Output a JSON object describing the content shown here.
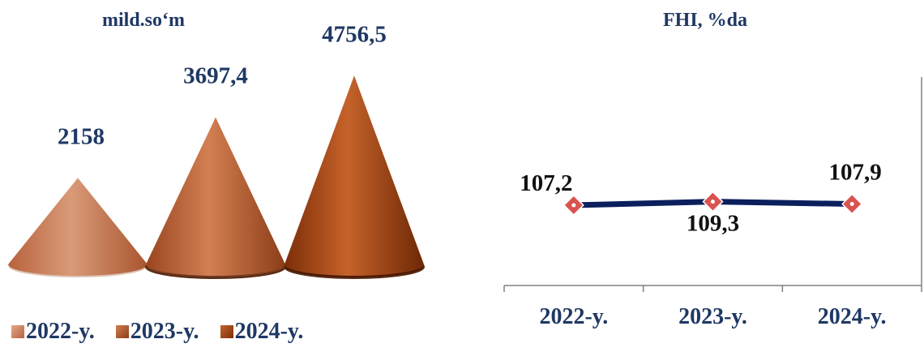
{
  "chart_data": [
    {
      "type": "bar",
      "shape": "cone",
      "title": "mild.so‘m",
      "categories": [
        "2022-y.",
        "2023-y.",
        "2024-y."
      ],
      "values": [
        2158,
        3697.4,
        4756.5
      ],
      "value_labels": [
        "2158",
        "3697,4",
        "4756,5"
      ],
      "colors": [
        "#c7754e",
        "#b85a2a",
        "#a0400f"
      ],
      "legend": [
        "2022-y.",
        "2023-y.",
        "2024-y."
      ],
      "legend_position": "bottom",
      "grid": false
    },
    {
      "type": "line",
      "title": "FHI, %da",
      "categories": [
        "2022-y.",
        "2023-y.",
        "2024-y."
      ],
      "values": [
        107.2,
        109.3,
        107.9
      ],
      "value_labels": [
        "107,2",
        "109,3",
        "107,9"
      ],
      "line_color": "#0a1f5c",
      "marker_color": "#d9534f",
      "grid": false
    }
  ]
}
